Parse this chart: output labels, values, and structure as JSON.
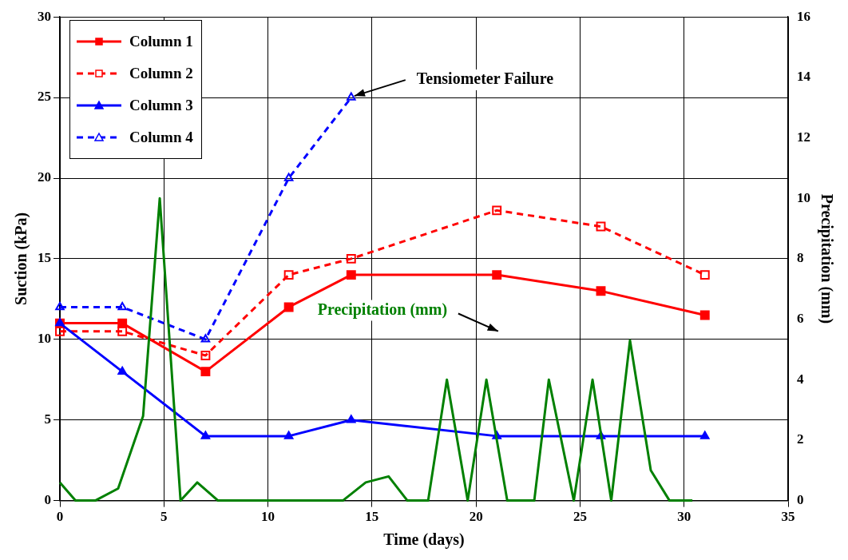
{
  "chart_data": {
    "type": "line",
    "xlabel": "Time (days)",
    "ylabel": "Suction (kPa)",
    "y2label": "Precipitation (mm)",
    "xlim": [
      0,
      35
    ],
    "xticks": [
      0,
      5,
      10,
      15,
      20,
      25,
      30,
      35
    ],
    "ylim": [
      0,
      30
    ],
    "yticks": [
      0,
      5,
      10,
      15,
      20,
      25,
      30
    ],
    "y2lim": [
      0,
      16
    ],
    "y2ticks": [
      0,
      2,
      4,
      6,
      8,
      10,
      12,
      14,
      16
    ],
    "grid": true,
    "legend": "top left",
    "annotations": [
      {
        "text": "Tensiometer Failure",
        "x": 14,
        "y": 25
      }
    ],
    "series": [
      {
        "name": "Column 1",
        "color": "#ff0000",
        "marker": "square",
        "line_style": "solid",
        "x": [
          0,
          3,
          7,
          11,
          14,
          21,
          26,
          31
        ],
        "values": [
          11,
          11,
          8,
          12,
          14,
          14,
          13,
          11.5
        ]
      },
      {
        "name": "Column 2",
        "color": "#ff0000",
        "marker": "square",
        "line_style": "dashed",
        "x": [
          0,
          3,
          7,
          11,
          14,
          21,
          26,
          31
        ],
        "values": [
          10.5,
          10.5,
          9,
          14,
          15,
          18,
          17,
          14
        ]
      },
      {
        "name": "Column 3",
        "color": "#0000ff",
        "marker": "triangle",
        "line_style": "solid",
        "x": [
          0,
          3,
          7,
          11,
          14,
          21,
          26,
          31
        ],
        "values": [
          11,
          8,
          4,
          4,
          5,
          4,
          4,
          4
        ]
      },
      {
        "name": "Column 4",
        "color": "#0000ff",
        "marker": "triangle",
        "line_style": "dashed",
        "x": [
          0,
          3,
          7,
          11,
          14
        ],
        "values": [
          12,
          12,
          10,
          20,
          25
        ]
      },
      {
        "name": "Precipitation (mm)",
        "color": "#008000",
        "marker": "none",
        "line_style": "solid",
        "axis": "y2",
        "x": [
          0,
          0.75,
          1.7,
          2.8,
          4,
          4.8,
          5.8,
          6.6,
          7.6,
          13.6,
          14.7,
          15.8,
          16.7,
          17.7,
          18.6,
          19.6,
          20.5,
          21.5,
          22.8,
          23.5,
          24.7,
          25.6,
          26.5,
          27.4,
          28.4,
          29.3,
          30.4
        ],
        "values": [
          0.6,
          0,
          0,
          0.4,
          2.8,
          10,
          0,
          0.6,
          0,
          0,
          0.6,
          0.8,
          0,
          0,
          4,
          0,
          4,
          0,
          0,
          4,
          0,
          4,
          0,
          5.3,
          1,
          0,
          0
        ]
      }
    ]
  }
}
